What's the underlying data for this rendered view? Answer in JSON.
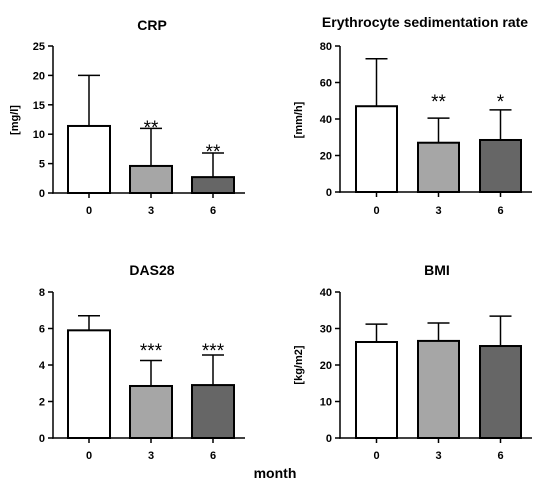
{
  "figure": {
    "xlabel": "month"
  },
  "colors": {
    "bars": [
      "#ffffff",
      "#a6a6a6",
      "#666666"
    ],
    "outline": "#000000",
    "text": "#000000"
  },
  "chart_data": [
    {
      "type": "bar",
      "title": "CRP",
      "ylabel": "[mg/l]",
      "categories": [
        "0",
        "3",
        "6"
      ],
      "values": [
        11.4,
        4.6,
        2.7
      ],
      "errors": [
        8.6,
        6.4,
        4.1
      ],
      "ylim": [
        0,
        25
      ],
      "yticks": [
        0,
        5,
        10,
        15,
        20,
        25
      ],
      "significance": [
        "",
        "**",
        "**"
      ],
      "grid": false,
      "legend": "none"
    },
    {
      "type": "bar",
      "title": "Erythrocyte sedimentation rate",
      "ylabel": "[mm/h]",
      "categories": [
        "0",
        "3",
        "6"
      ],
      "values": [
        47,
        27,
        28.5
      ],
      "errors": [
        26,
        13.5,
        16.5
      ],
      "ylim": [
        0,
        80
      ],
      "yticks": [
        0,
        20,
        40,
        60,
        80
      ],
      "significance": [
        "",
        "**",
        "*"
      ],
      "grid": false,
      "legend": "none"
    },
    {
      "type": "bar",
      "title": "DAS28",
      "ylabel": "",
      "categories": [
        "0",
        "3",
        "6"
      ],
      "values": [
        5.9,
        2.85,
        2.9
      ],
      "errors": [
        0.8,
        1.4,
        1.65
      ],
      "ylim": [
        0,
        8
      ],
      "yticks": [
        0,
        2,
        4,
        6,
        8
      ],
      "significance": [
        "",
        "***",
        "***"
      ],
      "grid": false,
      "legend": "none"
    },
    {
      "type": "bar",
      "title": "BMI",
      "ylabel": "[kg/m2]",
      "categories": [
        "0",
        "3",
        "6"
      ],
      "values": [
        26.3,
        26.6,
        25.2
      ],
      "errors": [
        4.9,
        4.9,
        8.2
      ],
      "ylim": [
        0,
        40
      ],
      "yticks": [
        0,
        10,
        20,
        30,
        40
      ],
      "significance": [
        "",
        "",
        ""
      ],
      "grid": false,
      "legend": "none"
    }
  ]
}
